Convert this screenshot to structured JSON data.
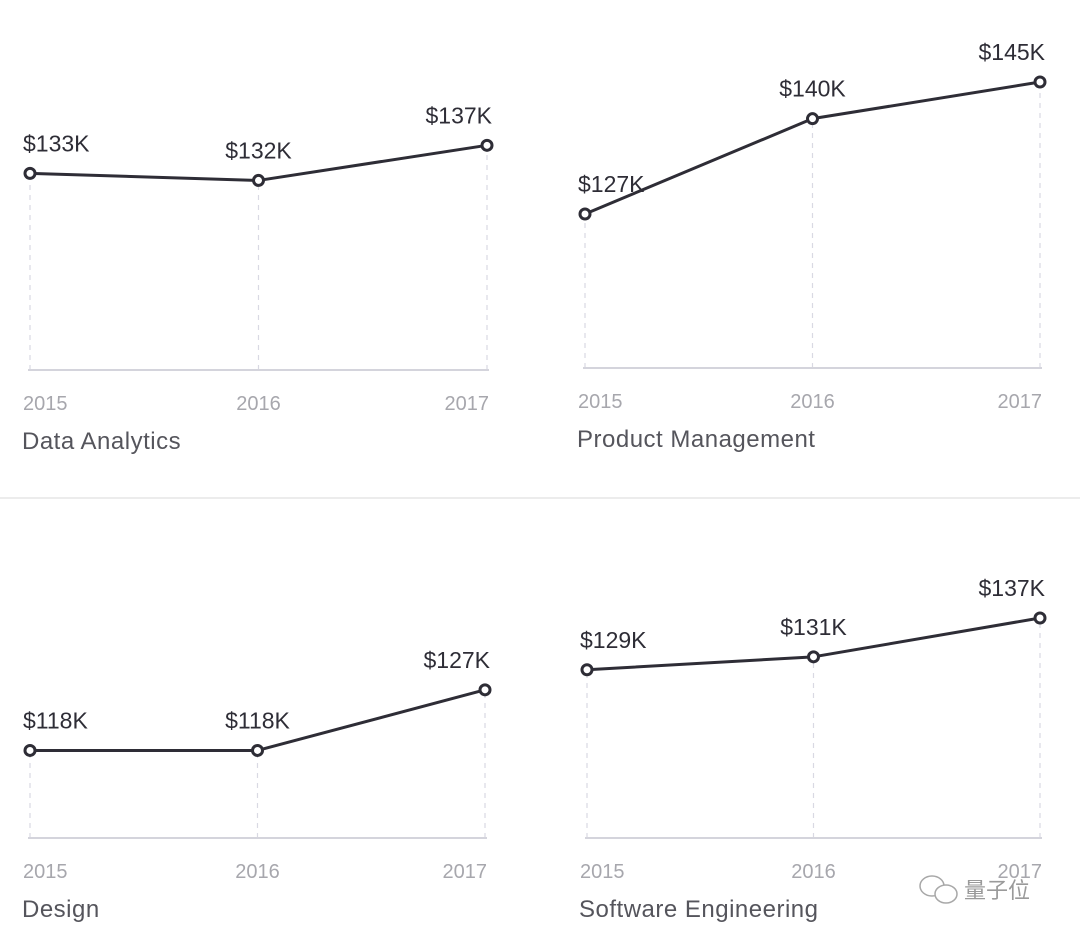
{
  "chart_data": [
    {
      "type": "line",
      "title": "Data Analytics",
      "categories": [
        "2015",
        "2016",
        "2017"
      ],
      "values": [
        133,
        132,
        137
      ],
      "labels": [
        "$133K",
        "$132K",
        "$137K"
      ],
      "unit": "$K",
      "ylim": [
        105,
        152
      ],
      "grid": "vertical dashed"
    },
    {
      "type": "line",
      "title": "Product Management",
      "categories": [
        "2015",
        "2016",
        "2017"
      ],
      "values": [
        127,
        140,
        145
      ],
      "labels": [
        "$127K",
        "$140K",
        "$145K"
      ],
      "unit": "$K",
      "ylim": [
        106,
        151
      ],
      "grid": "vertical dashed"
    },
    {
      "type": "line",
      "title": "Design",
      "categories": [
        "2015",
        "2016",
        "2017"
      ],
      "values": [
        118,
        118,
        127
      ],
      "labels": [
        "$118K",
        "$118K",
        "$127K"
      ],
      "unit": "$K",
      "ylim": [
        105,
        154
      ],
      "grid": "vertical dashed"
    },
    {
      "type": "line",
      "title": "Software Engineering",
      "categories": [
        "2015",
        "2016",
        "2017"
      ],
      "values": [
        129,
        131,
        137
      ],
      "labels": [
        "$129K",
        "$131K",
        "$137K"
      ],
      "unit": "$K",
      "ylim": [
        103,
        154
      ],
      "grid": "vertical dashed"
    }
  ],
  "watermark": "量子位",
  "colors": {
    "line": "#2e2d36",
    "grid": "#d9d9e3",
    "axis": "#d4d4dc",
    "divider": "#e6e6e6"
  }
}
